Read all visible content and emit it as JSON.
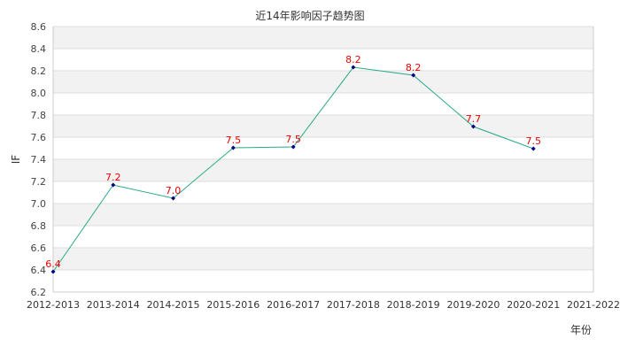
{
  "chart_data": {
    "type": "line",
    "title": "近14年影响因子趋势图",
    "xlabel": "年份",
    "ylabel": "IF",
    "categories": [
      "2012-2013",
      "2013-2014",
      "2014-2015",
      "2015-2016",
      "2016-2017",
      "2017-2018",
      "2018-2019",
      "2019-2020",
      "2020-2021",
      "2021-2022"
    ],
    "series": [
      {
        "name": "IF",
        "values": [
          6.384,
          7.168,
          7.048,
          7.504,
          7.512,
          8.232,
          8.16,
          7.696,
          7.496,
          null
        ],
        "labels": [
          "6.4",
          "7.2",
          "7.0",
          "7.5",
          "7.5",
          "8.2",
          "8.2",
          "7.7",
          "7.5",
          ""
        ]
      }
    ],
    "ylim": [
      6.2,
      8.6
    ],
    "yticks": [
      "6.2",
      "6.4",
      "6.6",
      "6.8",
      "7.0",
      "7.2",
      "7.4",
      "7.6",
      "7.8",
      "8.0",
      "8.2",
      "8.4",
      "8.6"
    ],
    "grid": true,
    "banded_background": true,
    "legend": "none",
    "colors": {
      "line": "#26a985",
      "marker": "#000080",
      "data_label": "#ee0000",
      "band": "#f2f2f2",
      "grid": "#dddddd"
    }
  }
}
